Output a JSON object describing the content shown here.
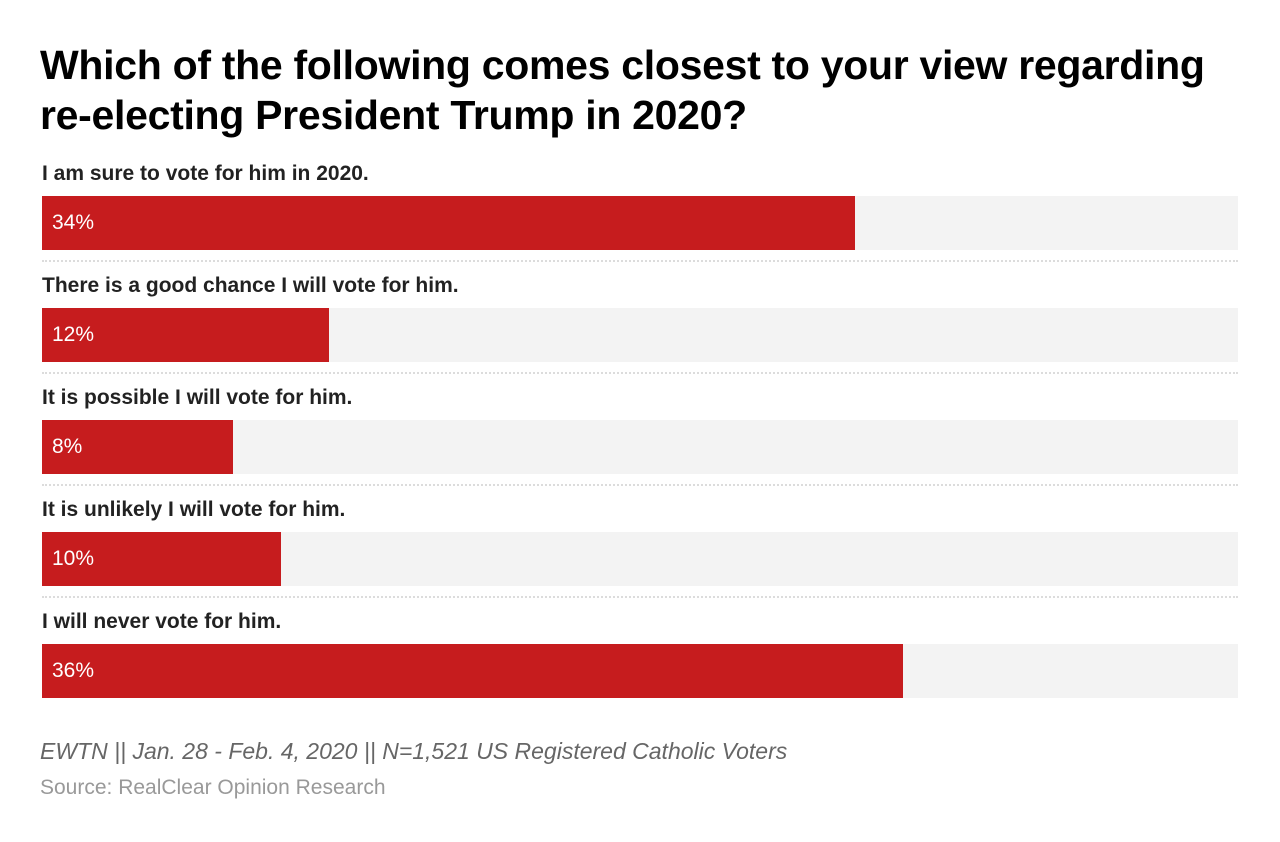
{
  "colors": {
    "bar": "#c61c1e",
    "track": "#f3f3f3"
  },
  "chart_data": {
    "type": "bar",
    "orientation": "horizontal",
    "title": "Which of the following comes closest to your view regarding re-electing President Trump in 2020?",
    "xlim": [
      0,
      50
    ],
    "value_suffix": "%",
    "categories": [
      "I am sure to vote for him in 2020.",
      "There is a good chance I will vote for him.",
      "It is possible I will vote for him.",
      "It is unlikely I will vote for him.",
      "I will never vote for him."
    ],
    "values": [
      34,
      12,
      8,
      10,
      36
    ],
    "value_labels": [
      "34%",
      "12%",
      "8%",
      "10%",
      "36%"
    ],
    "note": "EWTN || Jan. 28 - Feb. 4, 2020 || N=1,521 US Registered Catholic Voters",
    "source": "Source: RealClear Opinion Research"
  }
}
